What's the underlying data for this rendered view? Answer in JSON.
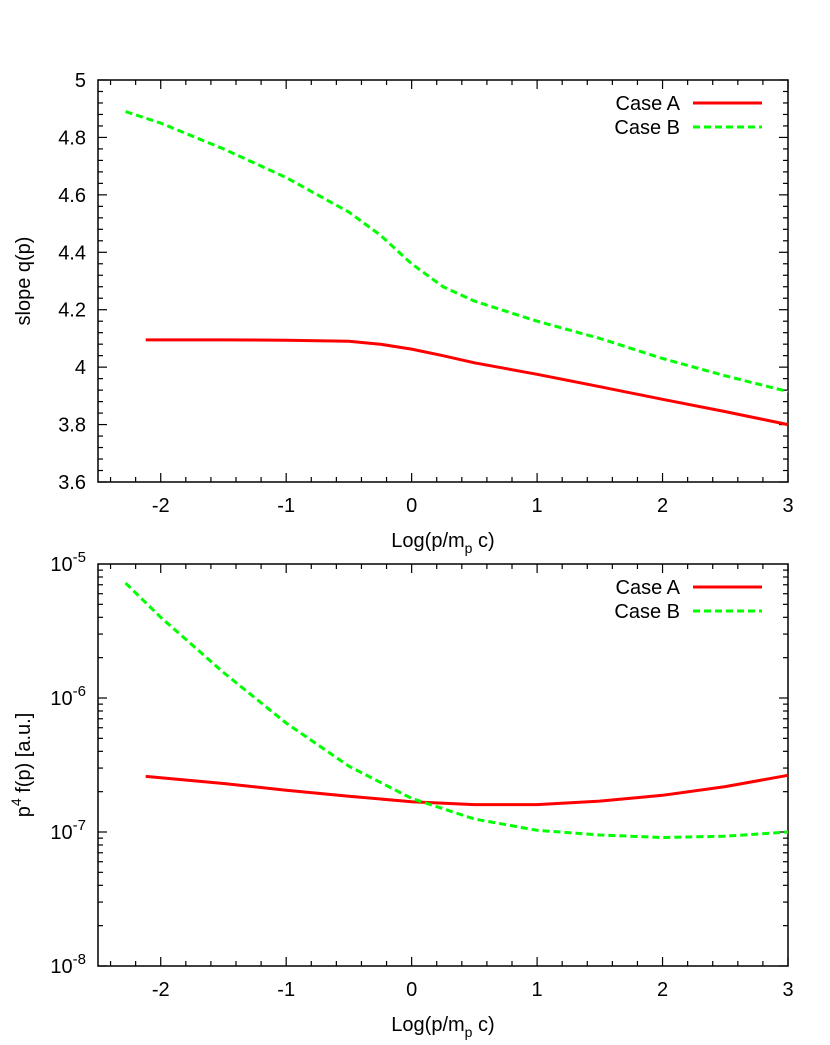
{
  "chart_data": [
    {
      "type": "line",
      "xlabel": "Log(p/m_p c)",
      "ylabel": "slope q(p)",
      "xlim": [
        -2.5,
        3
      ],
      "ylim": [
        3.6,
        5
      ],
      "yscale": "linear",
      "grid": false,
      "legend_position": "top-right",
      "xticks": [
        "-2",
        "-1",
        "0",
        "1",
        "2",
        "3"
      ],
      "yticks": [
        "3.6",
        "3.8",
        "4",
        "4.2",
        "4.4",
        "4.6",
        "4.8",
        "5"
      ],
      "series": [
        {
          "name": "Case A",
          "color": "#ff0000",
          "dash": "solid",
          "x": [
            -2.12,
            -1.5,
            -1.0,
            -0.5,
            -0.25,
            0.0,
            0.25,
            0.5,
            1.0,
            1.5,
            2.0,
            2.5,
            3.0
          ],
          "y": [
            4.095,
            4.095,
            4.094,
            4.09,
            4.08,
            4.063,
            4.04,
            4.015,
            3.975,
            3.932,
            3.888,
            3.845,
            3.8
          ]
        },
        {
          "name": "Case B",
          "color": "#00ff00",
          "dash": "dashed",
          "x": [
            -2.28,
            -2.0,
            -1.5,
            -1.0,
            -0.5,
            -0.25,
            0.0,
            0.25,
            0.5,
            1.0,
            1.5,
            2.0,
            2.5,
            3.0
          ],
          "y": [
            4.89,
            4.85,
            4.76,
            4.66,
            4.54,
            4.46,
            4.36,
            4.28,
            4.23,
            4.16,
            4.1,
            4.03,
            3.97,
            3.915
          ]
        }
      ]
    },
    {
      "type": "line",
      "xlabel": "Log(p/m_p c)",
      "ylabel": "p^4 f(p) [a.u.]",
      "xlim": [
        -2.5,
        3
      ],
      "ylim": [
        1e-08,
        1e-05
      ],
      "yscale": "log",
      "grid": false,
      "legend_position": "top-right",
      "xticks": [
        "-2",
        "-1",
        "0",
        "1",
        "2",
        "3"
      ],
      "yticks": [
        "10^-8",
        "10^-7",
        "10^-6",
        "10^-5"
      ],
      "series": [
        {
          "name": "Case A",
          "color": "#ff0000",
          "dash": "solid",
          "x": [
            -2.12,
            -1.5,
            -1.0,
            -0.5,
            0.0,
            0.5,
            1.0,
            1.5,
            2.0,
            2.5,
            3.0
          ],
          "y": [
            2.6e-07,
            2.3e-07,
            2.05e-07,
            1.85e-07,
            1.68e-07,
            1.6e-07,
            1.6e-07,
            1.7e-07,
            1.88e-07,
            2.18e-07,
            2.65e-07
          ]
        },
        {
          "name": "Case B",
          "color": "#00ff00",
          "dash": "dashed",
          "x": [
            -2.28,
            -2.0,
            -1.5,
            -1.0,
            -0.5,
            0.0,
            0.5,
            1.0,
            1.5,
            2.0,
            2.5,
            3.0
          ],
          "y": [
            7.2e-06,
            4e-06,
            1.55e-06,
            6.5e-07,
            3.1e-07,
            1.78e-07,
            1.25e-07,
            1.03e-07,
            9.5e-08,
            9.1e-08,
            9.3e-08,
            1e-07
          ]
        }
      ]
    }
  ]
}
